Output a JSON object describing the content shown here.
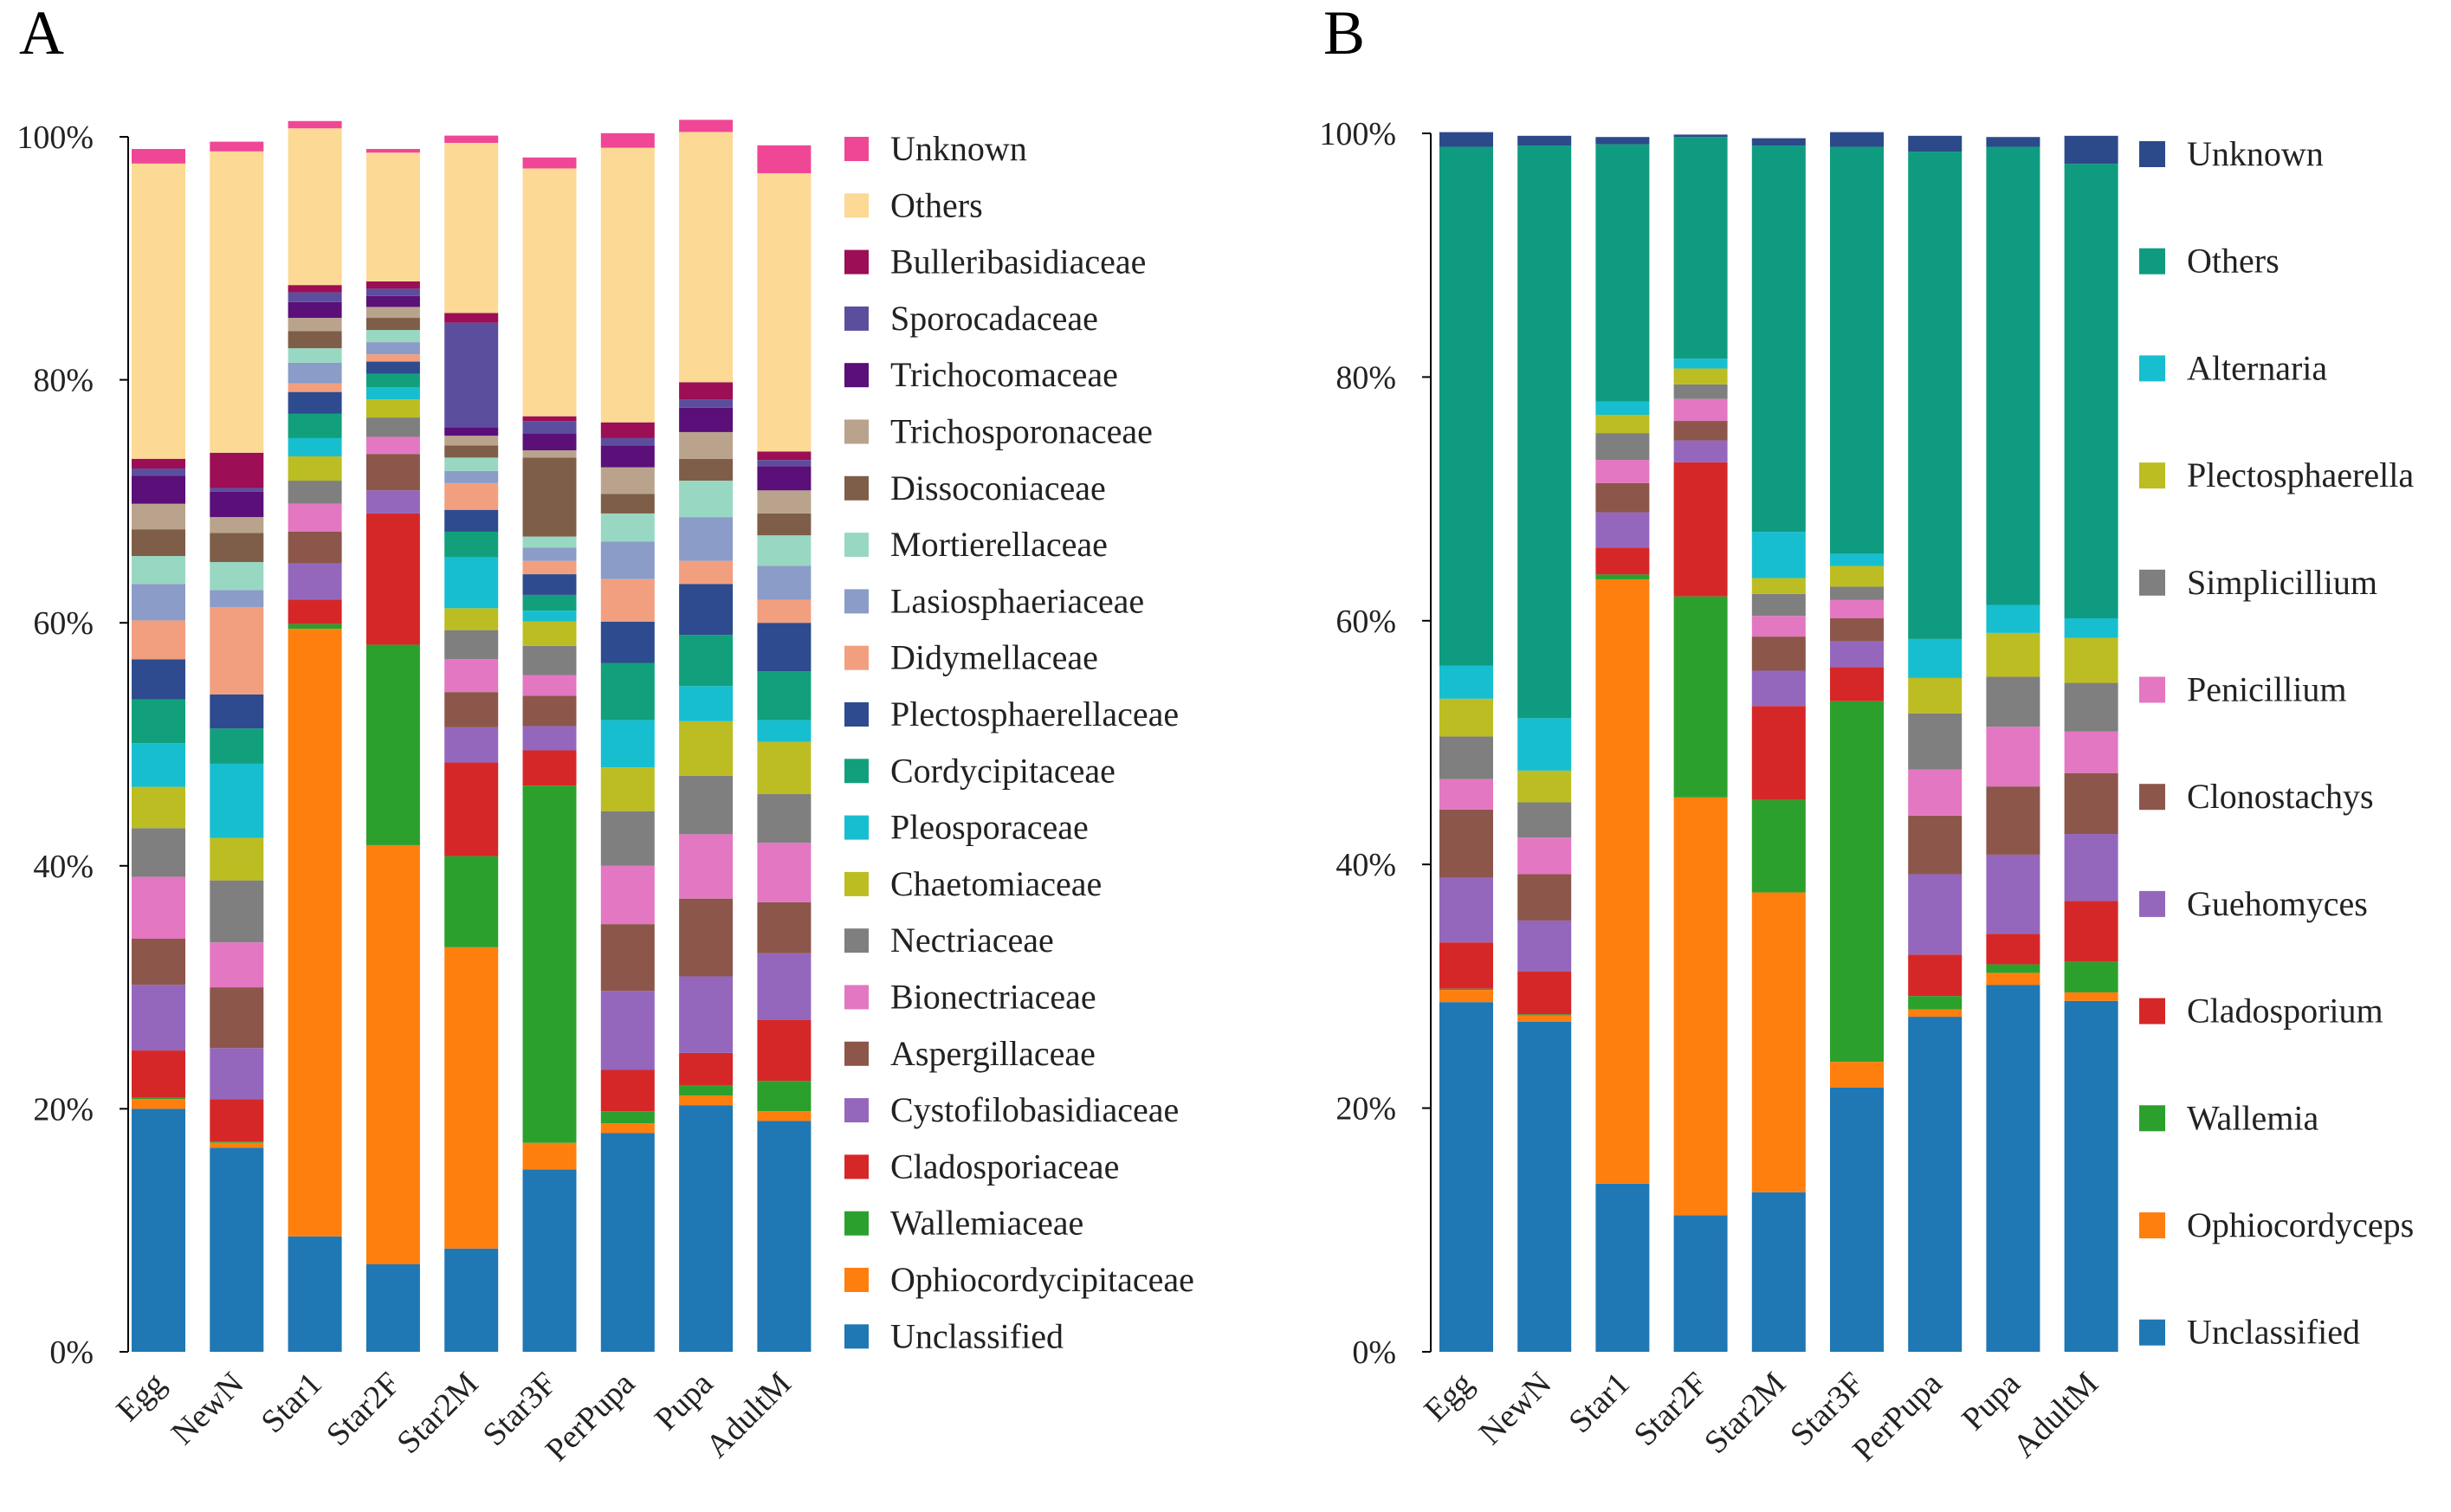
{
  "panels": [
    {
      "label": "A",
      "chart_data": {
        "type": "bar",
        "stacked": true,
        "normalized": true,
        "yticks": [
          "0%",
          "20%",
          "40%",
          "60%",
          "80%",
          "100%"
        ],
        "ylim": [
          0,
          100
        ],
        "categories": [
          "Egg",
          "NewN",
          "Star1",
          "Star2F",
          "Star2M",
          "Star3F",
          "PerPupa",
          "Pupa",
          "AdultM"
        ],
        "series": [
          {
            "name": "Unclassified",
            "color": "#1f77b4",
            "values": [
              20.0,
              16.8,
              9.5,
              7.2,
              8.5,
              15.0,
              18.0,
              20.3,
              19.0
            ]
          },
          {
            "name": "Ophiocordycipitaceae",
            "color": "#ff7f0e",
            "values": [
              0.8,
              0.4,
              50.0,
              34.5,
              24.8,
              2.2,
              0.8,
              0.8,
              0.8
            ]
          },
          {
            "name": "Wallemiaceae",
            "color": "#2ca02c",
            "values": [
              0.1,
              0.1,
              0.4,
              16.5,
              7.5,
              29.4,
              1.0,
              0.8,
              2.5
            ]
          },
          {
            "name": "Cladosporiaceae",
            "color": "#d62728",
            "values": [
              3.9,
              3.5,
              2.0,
              10.8,
              7.7,
              2.9,
              3.4,
              2.7,
              5.0
            ]
          },
          {
            "name": "Cystofilobasidiaceae",
            "color": "#9467bd",
            "values": [
              5.4,
              4.2,
              3.0,
              1.9,
              2.9,
              2.0,
              6.5,
              6.3,
              5.5
            ]
          },
          {
            "name": "Aspergillaceae",
            "color": "#8c564b",
            "values": [
              3.8,
              5.0,
              2.6,
              3.0,
              2.9,
              2.5,
              5.5,
              6.4,
              4.2
            ]
          },
          {
            "name": "Bionectriaceae",
            "color": "#e377c2",
            "values": [
              5.1,
              3.7,
              2.3,
              1.4,
              2.7,
              1.7,
              4.8,
              5.3,
              4.9
            ]
          },
          {
            "name": "Nectriaceae",
            "color": "#7f7f7f",
            "values": [
              4.0,
              5.1,
              1.9,
              1.6,
              2.4,
              2.4,
              4.5,
              4.8,
              4.0
            ]
          },
          {
            "name": "Chaetomiaceae",
            "color": "#bcbd22",
            "values": [
              3.4,
              3.5,
              2.0,
              1.5,
              1.8,
              2.0,
              3.6,
              4.5,
              4.3
            ]
          },
          {
            "name": "Pleosporaceae",
            "color": "#17becf",
            "values": [
              3.6,
              6.1,
              1.5,
              1.0,
              4.2,
              0.9,
              3.9,
              2.9,
              1.8
            ]
          },
          {
            "name": "Cordycipitaceae",
            "color": "#12a07c",
            "values": [
              3.6,
              2.9,
              2.0,
              1.1,
              2.1,
              1.3,
              4.7,
              4.2,
              4.0
            ]
          },
          {
            "name": "Plectosphaerellaceae",
            "color": "#2d4b8e",
            "values": [
              3.3,
              2.8,
              1.8,
              1.0,
              1.8,
              1.7,
              3.4,
              4.2,
              4.0
            ]
          },
          {
            "name": "Didymellaceae",
            "color": "#f29f80",
            "values": [
              3.2,
              7.2,
              0.7,
              0.6,
              2.2,
              1.1,
              3.5,
              1.9,
              1.9
            ]
          },
          {
            "name": "Lasiosphaeriaceae",
            "color": "#8a9cc7",
            "values": [
              3.0,
              1.4,
              1.7,
              1.0,
              1.0,
              1.1,
              3.1,
              3.6,
              2.8
            ]
          },
          {
            "name": "Mortierellaceae",
            "color": "#98d8c2",
            "values": [
              2.3,
              2.3,
              1.2,
              1.0,
              1.1,
              0.9,
              2.3,
              3.0,
              2.5
            ]
          },
          {
            "name": "Dissoconiaceae",
            "color": "#7e5e48",
            "values": [
              2.2,
              2.4,
              1.4,
              1.0,
              1.0,
              6.5,
              1.6,
              1.8,
              1.8
            ]
          },
          {
            "name": "Trichosporonaceae",
            "color": "#b9a38c",
            "values": [
              2.1,
              1.3,
              1.1,
              0.9,
              0.8,
              0.6,
              2.2,
              2.2,
              1.9
            ]
          },
          {
            "name": "Trichocomaceae",
            "color": "#5a0f79",
            "values": [
              2.3,
              2.1,
              1.3,
              0.9,
              0.7,
              1.4,
              1.8,
              2.0,
              2.0
            ]
          },
          {
            "name": "Sporocadaceae",
            "color": "#5b4f9d",
            "values": [
              0.6,
              0.3,
              0.8,
              0.6,
              8.6,
              1.0,
              0.6,
              0.7,
              0.5
            ]
          },
          {
            "name": "Bulleribasidiaceae",
            "color": "#9c0e55",
            "values": [
              0.8,
              2.9,
              0.6,
              0.6,
              0.8,
              0.4,
              1.3,
              1.4,
              0.7
            ]
          },
          {
            "name": "Others",
            "color": "#fcd995",
            "values": [
              24.3,
              24.8,
              12.9,
              10.6,
              14.0,
              20.4,
              22.6,
              20.6,
              22.9
            ]
          },
          {
            "name": "Unknown",
            "color": "#ef4796",
            "values": [
              1.2,
              0.8,
              0.6,
              0.3,
              0.6,
              0.9,
              1.2,
              1.0,
              2.3
            ]
          }
        ]
      }
    },
    {
      "label": "B",
      "chart_data": {
        "type": "bar",
        "stacked": true,
        "normalized": true,
        "yticks": [
          "0%",
          "20%",
          "40%",
          "60%",
          "80%",
          "100%"
        ],
        "ylim": [
          0,
          100
        ],
        "categories": [
          "Egg",
          "NewN",
          "Star1",
          "Star2F",
          "Star2M",
          "Star3F",
          "PerPupa",
          "Pupa",
          "AdultM"
        ],
        "series": [
          {
            "name": "Unclassified",
            "color": "#1f77b4",
            "values": [
              28.7,
              27.1,
              13.8,
              11.2,
              13.1,
              21.7,
              27.5,
              30.1,
              28.8
            ]
          },
          {
            "name": "Ophiocordyceps",
            "color": "#ff7f0e",
            "values": [
              1.0,
              0.5,
              49.6,
              34.3,
              24.6,
              2.1,
              0.6,
              1.0,
              0.7
            ]
          },
          {
            "name": "Wallemia",
            "color": "#2ca02c",
            "values": [
              0.1,
              0.1,
              0.4,
              16.5,
              7.6,
              29.6,
              1.1,
              0.7,
              2.5
            ]
          },
          {
            "name": "Cladosporium",
            "color": "#d62728",
            "values": [
              3.8,
              3.5,
              2.2,
              11.0,
              7.7,
              2.8,
              3.4,
              2.5,
              5.0
            ]
          },
          {
            "name": "Guehomyces",
            "color": "#9467bd",
            "values": [
              5.3,
              4.2,
              2.9,
              1.8,
              2.9,
              2.1,
              6.6,
              6.5,
              5.5
            ]
          },
          {
            "name": "Clonostachys",
            "color": "#8c564b",
            "values": [
              5.6,
              3.8,
              2.4,
              1.6,
              2.8,
              1.9,
              4.8,
              5.6,
              5.0
            ]
          },
          {
            "name": "Penicillium",
            "color": "#e377c2",
            "values": [
              2.5,
              3.0,
              1.9,
              1.8,
              1.7,
              1.5,
              3.8,
              4.9,
              3.4
            ]
          },
          {
            "name": "Simplicillium",
            "color": "#7f7f7f",
            "values": [
              3.5,
              2.9,
              2.2,
              1.2,
              1.8,
              1.1,
              4.6,
              4.1,
              4.0
            ]
          },
          {
            "name": "Plectosphaerella",
            "color": "#bcbd22",
            "values": [
              3.1,
              2.6,
              1.5,
              1.3,
              1.3,
              1.7,
              2.9,
              3.6,
              3.7
            ]
          },
          {
            "name": "Alternaria",
            "color": "#17becf",
            "values": [
              2.7,
              4.3,
              1.1,
              0.8,
              3.8,
              1.0,
              3.2,
              2.3,
              1.6
            ]
          },
          {
            "name": "Others",
            "color": "#0f9b80",
            "values": [
              42.6,
              47.0,
              21.1,
              18.2,
              31.7,
              33.4,
              40.0,
              37.6,
              37.3
            ]
          },
          {
            "name": "Unknown",
            "color": "#2c4a8a",
            "values": [
              1.2,
              0.8,
              0.6,
              0.2,
              0.6,
              1.2,
              1.3,
              0.8,
              2.3
            ]
          }
        ]
      }
    }
  ]
}
